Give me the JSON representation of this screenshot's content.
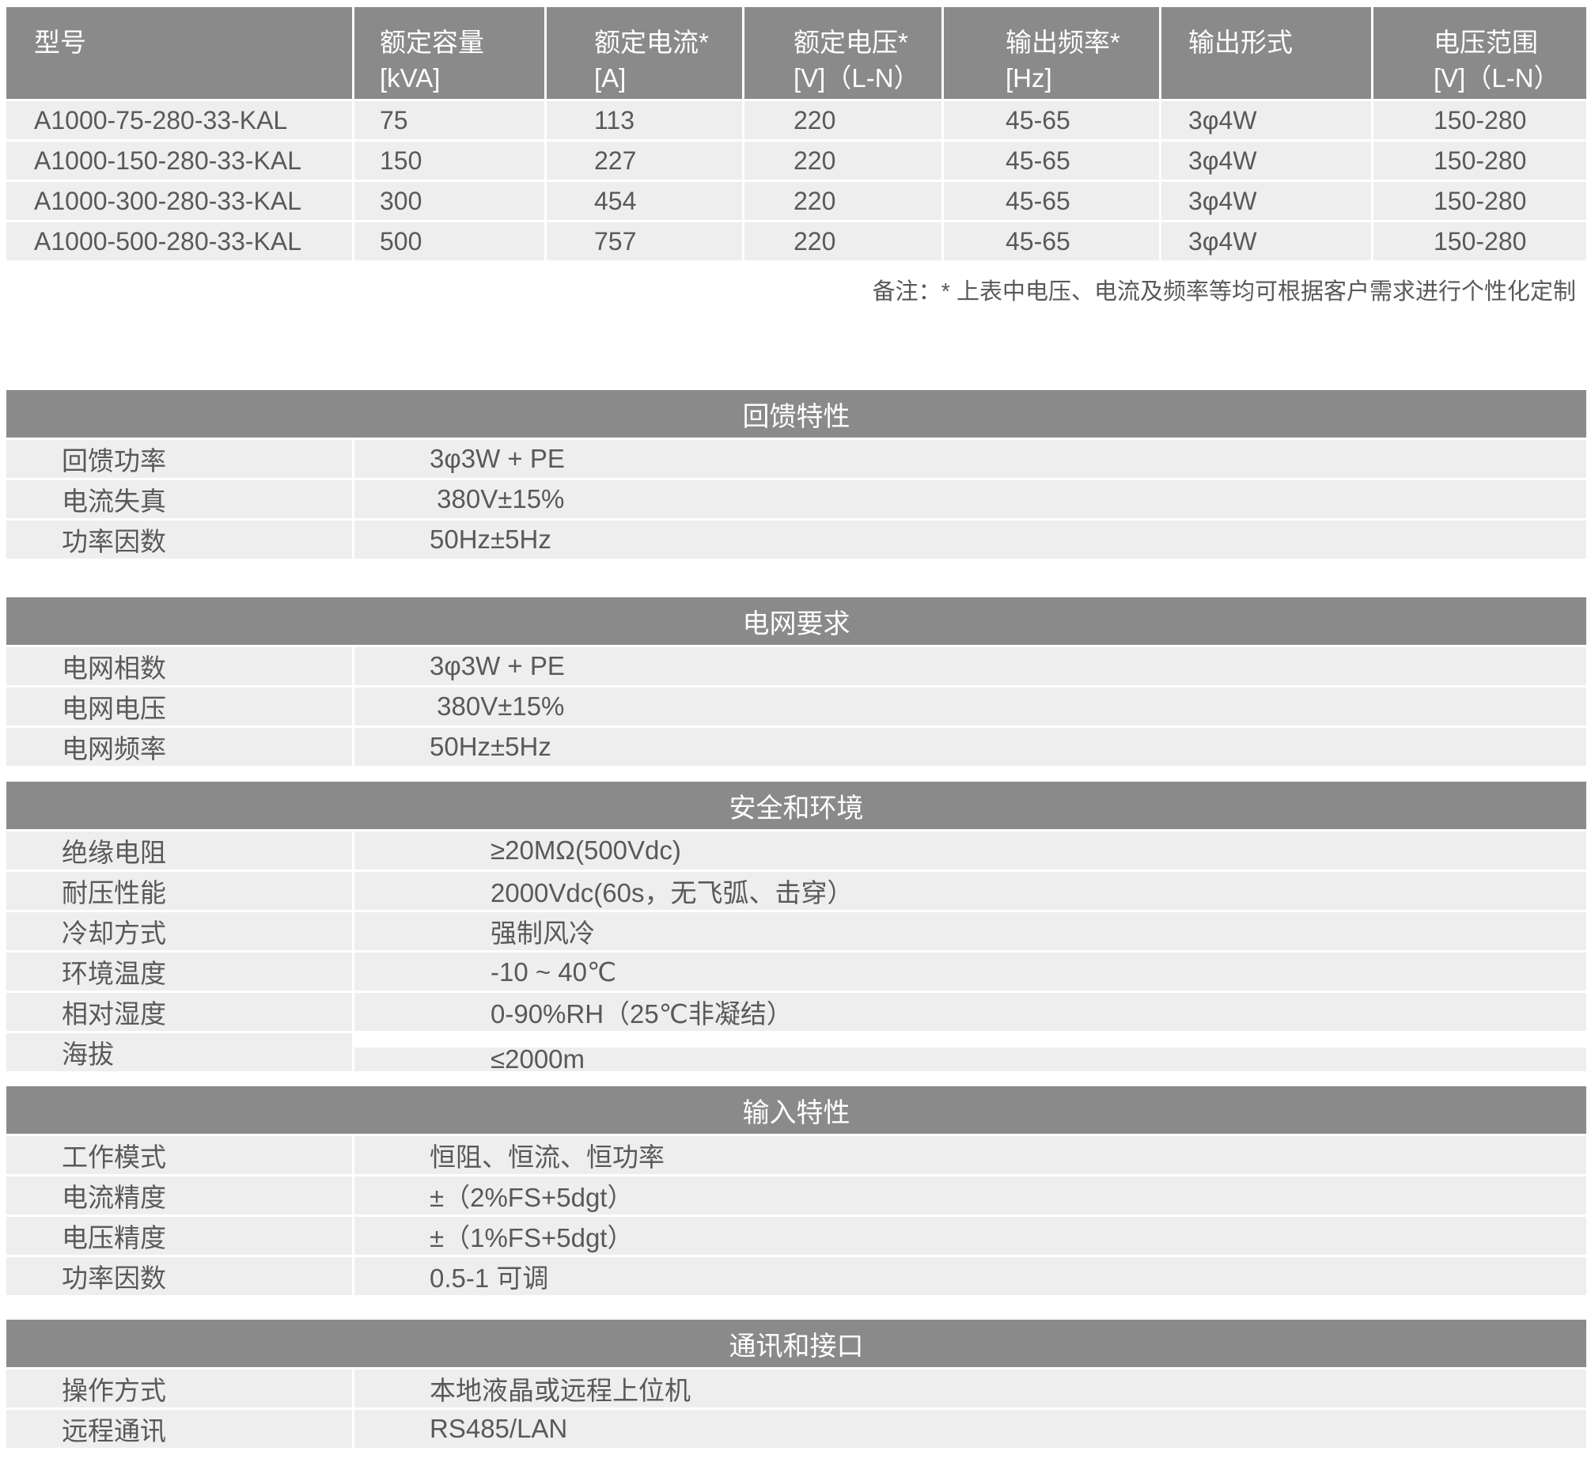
{
  "model_table": {
    "columns": [
      {
        "line1": "型号",
        "line2": ""
      },
      {
        "line1": "额定容量",
        "line2": "[kVA]"
      },
      {
        "line1": "额定电流*",
        "line2": "[A]"
      },
      {
        "line1": "额定电压*",
        "line2": "[V]（L-N）"
      },
      {
        "line1": "输出频率*",
        "line2": "[Hz]"
      },
      {
        "line1": "输出形式",
        "line2": ""
      },
      {
        "line1": "电压范围",
        "line2": "[V]（L-N）"
      }
    ],
    "rows": [
      [
        "A1000-75-280-33-KAL",
        "75",
        "113",
        "220",
        "45-65",
        "3φ4W",
        "150-280"
      ],
      [
        "A1000-150-280-33-KAL",
        "150",
        "227",
        "220",
        "45-65",
        "3φ4W",
        "150-280"
      ],
      [
        "A1000-300-280-33-KAL",
        "300",
        "454",
        "220",
        "45-65",
        "3φ4W",
        "150-280"
      ],
      [
        "A1000-500-280-33-KAL",
        "500",
        "757",
        "220",
        "45-65",
        "3φ4W",
        "150-280"
      ]
    ]
  },
  "note": "备注：* 上表中电压、电流及频率等均可根据客户需求进行个性化定制",
  "sections": [
    {
      "title": "回馈特性",
      "rows": [
        [
          "回馈功率",
          "3φ3W + PE"
        ],
        [
          "电流失真",
          " 380V±15%"
        ],
        [
          "功率因数",
          "50Hz±5Hz"
        ]
      ]
    },
    {
      "title": "电网要求",
      "rows": [
        [
          "电网相数",
          "3φ3W + PE"
        ],
        [
          "电网电压",
          " 380V±15%"
        ],
        [
          "电网频率",
          "50Hz±5Hz"
        ]
      ]
    },
    {
      "title": "安全和环境",
      "rows": [
        [
          "绝缘电阻",
          "≥20MΩ(500Vdc)"
        ],
        [
          "耐压性能",
          "2000Vdc(60s，无飞弧、击穿）"
        ],
        [
          "冷却方式",
          "强制风冷"
        ],
        [
          "环境温度",
          "-10 ~ 40℃"
        ],
        [
          "相对湿度",
          "0-90%RH（25℃非凝结）"
        ],
        [
          "海拔",
          "≤2000m"
        ]
      ]
    },
    {
      "title": "输入特性",
      "rows": [
        [
          "工作模式",
          "恒阻、恒流、恒功率"
        ],
        [
          "电流精度",
          "±（2%FS+5dgt）"
        ],
        [
          "电压精度",
          "±（1%FS+5dgt）"
        ],
        [
          "功率因数",
          "0.5-1 可调"
        ]
      ]
    },
    {
      "title": "通讯和接口",
      "rows": [
        [
          "操作方式",
          "本地液晶或远程上位机"
        ],
        [
          "远程通讯",
          "RS485/LAN"
        ]
      ]
    }
  ],
  "colors": {
    "header_bg": "#8a8a8a",
    "row_bg": "#eeeeee",
    "text": "#595959",
    "header_text": "#ffffff"
  }
}
